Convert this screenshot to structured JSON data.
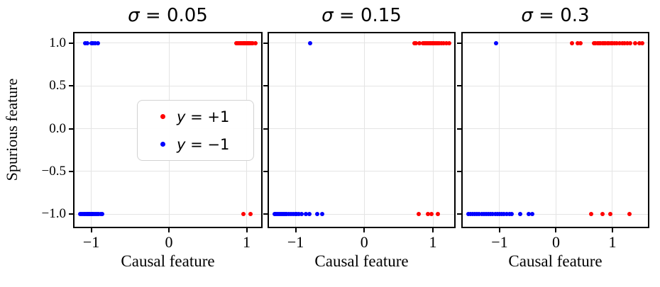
{
  "figure": {
    "ylabel": "Spurious feature",
    "background": "#ffffff",
    "colors": {
      "positive_class": "#ff0000",
      "negative_class": "#0000ff",
      "grid": "#e4e4e4",
      "spine": "#000000",
      "legend_border": "#d2d2d2"
    }
  },
  "legend": {
    "position": "center-left subplot 1",
    "entries": [
      {
        "label": "y = +1",
        "color": "#ff0000"
      },
      {
        "label": "y = −1",
        "color": "#0000ff"
      }
    ]
  },
  "chart_data": [
    {
      "type": "scatter",
      "title": "σ = 0.05",
      "xlabel": "Causal feature",
      "ylabel": "Spurious feature",
      "grid": true,
      "xlim": [
        -1.215,
        1.187
      ],
      "ylim": [
        -1.149,
        1.116
      ],
      "xticks": [
        {
          "value": -1,
          "label": "−1"
        },
        {
          "value": 0,
          "label": "0"
        },
        {
          "value": 1,
          "label": "1"
        }
      ],
      "yticks": [
        {
          "value": 1.0,
          "label": "1.0"
        },
        {
          "value": 0.5,
          "label": "0.5"
        },
        {
          "value": 0.0,
          "label": "0.0"
        },
        {
          "value": -0.5,
          "label": "−0.5"
        },
        {
          "value": -1.0,
          "label": "−1.0"
        }
      ],
      "yticklabels_visible": true,
      "has_legend": true,
      "series": [
        {
          "name": "y = +1",
          "color": "#ff0000",
          "points": [
            [
              0.87,
              1
            ],
            [
              0.89,
              1
            ],
            [
              0.905,
              1
            ],
            [
              0.92,
              1
            ],
            [
              0.93,
              1
            ],
            [
              0.945,
              1
            ],
            [
              0.955,
              1
            ],
            [
              0.965,
              1
            ],
            [
              0.975,
              1
            ],
            [
              0.985,
              1
            ],
            [
              1.0,
              1
            ],
            [
              1.01,
              1
            ],
            [
              1.02,
              1
            ],
            [
              1.03,
              1
            ],
            [
              1.045,
              1
            ],
            [
              1.06,
              1
            ],
            [
              1.08,
              1
            ],
            [
              1.11,
              1
            ],
            [
              0.96,
              -1
            ],
            [
              1.05,
              -1
            ]
          ]
        },
        {
          "name": "y = −1",
          "color": "#0000ff",
          "points": [
            [
              -1.08,
              1
            ],
            [
              -1.055,
              1
            ],
            [
              -1.0,
              1
            ],
            [
              -0.975,
              1
            ],
            [
              -0.95,
              1
            ],
            [
              -0.915,
              1
            ],
            [
              -1.14,
              -1
            ],
            [
              -1.12,
              -1
            ],
            [
              -1.105,
              -1
            ],
            [
              -1.09,
              -1
            ],
            [
              -1.075,
              -1
            ],
            [
              -1.06,
              -1
            ],
            [
              -1.05,
              -1
            ],
            [
              -1.04,
              -1
            ],
            [
              -1.03,
              -1
            ],
            [
              -1.02,
              -1
            ],
            [
              -1.01,
              -1
            ],
            [
              -1.0,
              -1
            ],
            [
              -0.99,
              -1
            ],
            [
              -0.975,
              -1
            ],
            [
              -0.96,
              -1
            ],
            [
              -0.945,
              -1
            ],
            [
              -0.925,
              -1
            ],
            [
              -0.9,
              -1
            ],
            [
              -0.875,
              -1
            ],
            [
              -0.855,
              -1
            ]
          ]
        }
      ]
    },
    {
      "type": "scatter",
      "title": "σ = 0.15",
      "xlabel": "Causal feature",
      "ylabel": "Spurious feature",
      "grid": true,
      "xlim": [
        -1.388,
        1.31
      ],
      "ylim": [
        -1.149,
        1.116
      ],
      "xticks": [
        {
          "value": -1,
          "label": "−1"
        },
        {
          "value": 0,
          "label": "0"
        },
        {
          "value": 1,
          "label": "1"
        }
      ],
      "yticks": [
        {
          "value": 1.0,
          "label": "1.0"
        },
        {
          "value": 0.5,
          "label": "0.5"
        },
        {
          "value": 0.0,
          "label": "0.0"
        },
        {
          "value": -0.5,
          "label": "−0.5"
        },
        {
          "value": -1.0,
          "label": "−1.0"
        }
      ],
      "yticklabels_visible": false,
      "has_legend": false,
      "series": [
        {
          "name": "y = +1",
          "color": "#ff0000",
          "points": [
            [
              0.73,
              1
            ],
            [
              0.755,
              1
            ],
            [
              0.8,
              1
            ],
            [
              0.86,
              1
            ],
            [
              0.88,
              1
            ],
            [
              0.9,
              1
            ],
            [
              0.92,
              1
            ],
            [
              0.94,
              1
            ],
            [
              0.955,
              1
            ],
            [
              0.97,
              1
            ],
            [
              0.985,
              1
            ],
            [
              1.0,
              1
            ],
            [
              1.015,
              1
            ],
            [
              1.03,
              1
            ],
            [
              1.05,
              1
            ],
            [
              1.07,
              1
            ],
            [
              1.09,
              1
            ],
            [
              1.12,
              1
            ],
            [
              1.16,
              1
            ],
            [
              1.2,
              1
            ],
            [
              1.24,
              1
            ],
            [
              0.79,
              -1
            ],
            [
              0.93,
              -1
            ],
            [
              0.98,
              -1
            ],
            [
              1.07,
              -1
            ]
          ]
        },
        {
          "name": "y = −1",
          "color": "#0000ff",
          "points": [
            [
              -0.79,
              1
            ],
            [
              -1.31,
              -1
            ],
            [
              -1.29,
              -1
            ],
            [
              -1.27,
              -1
            ],
            [
              -1.25,
              -1
            ],
            [
              -1.23,
              -1
            ],
            [
              -1.21,
              -1
            ],
            [
              -1.19,
              -1
            ],
            [
              -1.17,
              -1
            ],
            [
              -1.15,
              -1
            ],
            [
              -1.13,
              -1
            ],
            [
              -1.1,
              -1
            ],
            [
              -1.07,
              -1
            ],
            [
              -1.04,
              -1
            ],
            [
              -1.01,
              -1
            ],
            [
              -0.98,
              -1
            ],
            [
              -0.95,
              -1
            ],
            [
              -0.91,
              -1
            ],
            [
              -0.85,
              -1
            ],
            [
              -0.8,
              -1
            ],
            [
              -0.68,
              -1
            ],
            [
              -0.61,
              -1
            ]
          ]
        }
      ]
    },
    {
      "type": "scatter",
      "title": "σ = 0.3",
      "xlabel": "Causal feature",
      "ylabel": "Spurious feature",
      "grid": true,
      "xlim": [
        -1.654,
        1.629
      ],
      "ylim": [
        -1.149,
        1.116
      ],
      "xticks": [
        {
          "value": -1,
          "label": "−1"
        },
        {
          "value": 0,
          "label": "0"
        },
        {
          "value": 1,
          "label": "1"
        }
      ],
      "yticks": [
        {
          "value": 1.0,
          "label": "1.0"
        },
        {
          "value": 0.5,
          "label": "0.5"
        },
        {
          "value": 0.0,
          "label": "0.0"
        },
        {
          "value": -0.5,
          "label": "−0.5"
        },
        {
          "value": -1.0,
          "label": "−1.0"
        }
      ],
      "yticklabels_visible": false,
      "has_legend": false,
      "series": [
        {
          "name": "y = +1",
          "color": "#ff0000",
          "points": [
            [
              0.28,
              1
            ],
            [
              0.38,
              1
            ],
            [
              0.44,
              1
            ],
            [
              0.67,
              1
            ],
            [
              0.7,
              1
            ],
            [
              0.73,
              1
            ],
            [
              0.76,
              1
            ],
            [
              0.79,
              1
            ],
            [
              0.82,
              1
            ],
            [
              0.85,
              1
            ],
            [
              0.88,
              1
            ],
            [
              0.91,
              1
            ],
            [
              0.94,
              1
            ],
            [
              0.97,
              1
            ],
            [
              1.0,
              1
            ],
            [
              1.04,
              1
            ],
            [
              1.08,
              1
            ],
            [
              1.12,
              1
            ],
            [
              1.17,
              1
            ],
            [
              1.22,
              1
            ],
            [
              1.26,
              1
            ],
            [
              1.31,
              1
            ],
            [
              1.4,
              1
            ],
            [
              1.48,
              1
            ],
            [
              1.53,
              1
            ],
            [
              0.62,
              -1
            ],
            [
              0.82,
              -1
            ],
            [
              0.96,
              -1
            ],
            [
              1.3,
              -1
            ]
          ]
        },
        {
          "name": "y = −1",
          "color": "#0000ff",
          "points": [
            [
              -1.06,
              1
            ],
            [
              -1.55,
              -1
            ],
            [
              -1.52,
              -1
            ],
            [
              -1.48,
              -1
            ],
            [
              -1.44,
              -1
            ],
            [
              -1.4,
              -1
            ],
            [
              -1.36,
              -1
            ],
            [
              -1.32,
              -1
            ],
            [
              -1.28,
              -1
            ],
            [
              -1.24,
              -1
            ],
            [
              -1.2,
              -1
            ],
            [
              -1.16,
              -1
            ],
            [
              -1.12,
              -1
            ],
            [
              -1.08,
              -1
            ],
            [
              -1.04,
              -1
            ],
            [
              -1.0,
              -1
            ],
            [
              -0.96,
              -1
            ],
            [
              -0.92,
              -1
            ],
            [
              -0.87,
              -1
            ],
            [
              -0.82,
              -1
            ],
            [
              -0.78,
              -1
            ],
            [
              -0.63,
              -1
            ],
            [
              -0.49,
              -1
            ],
            [
              -0.42,
              -1
            ]
          ]
        }
      ]
    }
  ]
}
